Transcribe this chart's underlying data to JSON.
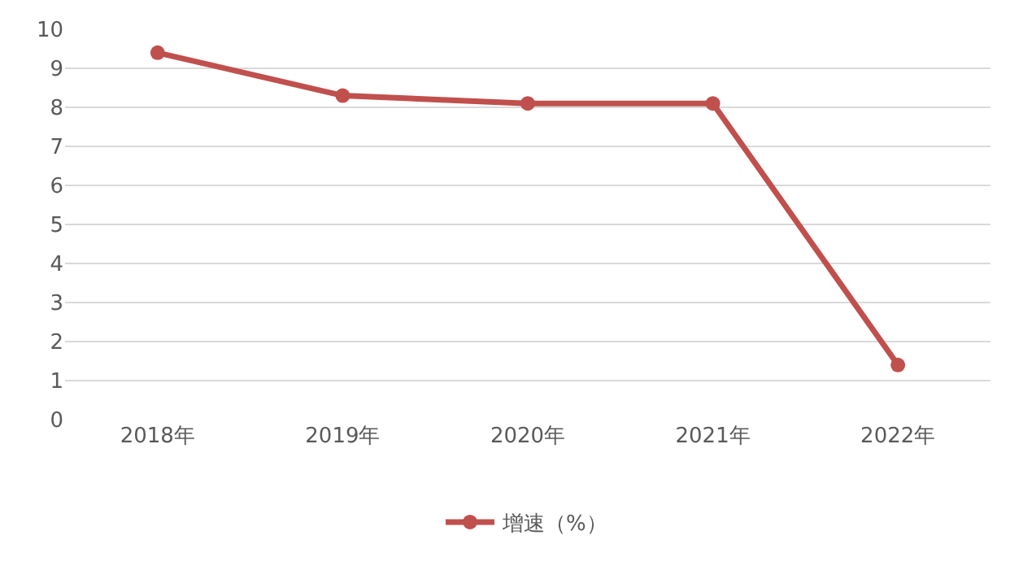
{
  "chart_data": {
    "type": "line",
    "categories": [
      "2018年",
      "2019年",
      "2020年",
      "2021年",
      "2022年"
    ],
    "series": [
      {
        "name": "增速（%）",
        "color": "#c0504d",
        "values": [
          9.4,
          8.3,
          8.1,
          8.1,
          1.4
        ]
      }
    ],
    "ylim": [
      0,
      10
    ],
    "yticks": [
      0,
      1,
      2,
      3,
      4,
      5,
      6,
      7,
      8,
      9,
      10
    ],
    "grid": "y",
    "legend": "bottom",
    "marker": "circle",
    "line_style": "solid"
  }
}
